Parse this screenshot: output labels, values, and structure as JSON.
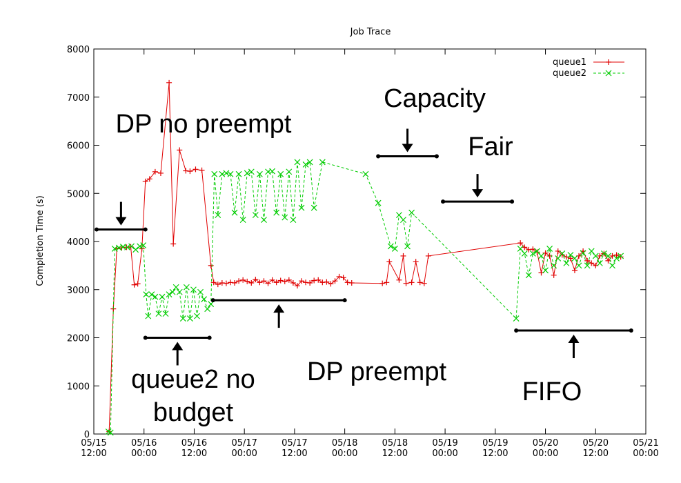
{
  "chart_data": {
    "type": "line",
    "title": "Job Trace",
    "xlabel": "",
    "ylabel": "Completion Time (s)",
    "ylim": [
      0,
      8000
    ],
    "yticks": [
      0,
      1000,
      2000,
      3000,
      4000,
      5000,
      6000,
      7000,
      8000
    ],
    "xlim": [
      "05/15 12:00",
      "05/21 00:00"
    ],
    "xticks": [
      {
        "top": "05/15",
        "bottom": "12:00"
      },
      {
        "top": "05/16",
        "bottom": "00:00"
      },
      {
        "top": "05/16",
        "bottom": "12:00"
      },
      {
        "top": "05/17",
        "bottom": "00:00"
      },
      {
        "top": "05/17",
        "bottom": "12:00"
      },
      {
        "top": "05/18",
        "bottom": "00:00"
      },
      {
        "top": "05/18",
        "bottom": "12:00"
      },
      {
        "top": "05/19",
        "bottom": "00:00"
      },
      {
        "top": "05/19",
        "bottom": "12:00"
      },
      {
        "top": "05/20",
        "bottom": "00:00"
      },
      {
        "top": "05/20",
        "bottom": "12:00"
      },
      {
        "top": "05/21",
        "bottom": "00:00"
      }
    ],
    "legend_position": "top-right",
    "grid": false,
    "colors": {
      "queue1": "#e00000",
      "queue2": "#00cc00"
    },
    "series": [
      {
        "name": "queue1",
        "marker": "plus",
        "points": [
          [
            "05/15 15:40",
            50
          ],
          [
            "05/15 16:40",
            2600
          ],
          [
            "05/15 17:30",
            3850
          ],
          [
            "05/15 18:40",
            3870
          ],
          [
            "05/15 19:50",
            3880
          ],
          [
            "05/15 20:50",
            3890
          ],
          [
            "05/15 21:40",
            3100
          ],
          [
            "05/15 22:30",
            3120
          ],
          [
            "05/15 23:30",
            3850
          ],
          [
            "05/16 00:20",
            5250
          ],
          [
            "05/16 01:20",
            5300
          ],
          [
            "05/16 02:40",
            5450
          ],
          [
            "05/16 04:00",
            5420
          ],
          [
            "05/16 06:00",
            7300
          ],
          [
            "05/16 07:00",
            3950
          ],
          [
            "05/16 08:30",
            5900
          ],
          [
            "05/16 10:00",
            5470
          ],
          [
            "05/16 11:00",
            5460
          ],
          [
            "05/16 12:20",
            5500
          ],
          [
            "05/16 13:50",
            5480
          ],
          [
            "05/16 16:00",
            3500
          ],
          [
            "05/16 16:40",
            3150
          ],
          [
            "05/16 17:40",
            3110
          ],
          [
            "05/16 18:40",
            3140
          ],
          [
            "05/16 19:40",
            3130
          ],
          [
            "05/16 20:40",
            3150
          ],
          [
            "05/16 21:40",
            3140
          ],
          [
            "05/16 22:40",
            3180
          ],
          [
            "05/16 23:40",
            3200
          ],
          [
            "05/17 00:40",
            3170
          ],
          [
            "05/17 01:40",
            3140
          ],
          [
            "05/17 02:40",
            3210
          ],
          [
            "05/17 03:40",
            3150
          ],
          [
            "05/17 04:40",
            3180
          ],
          [
            "05/17 05:40",
            3130
          ],
          [
            "05/17 06:40",
            3200
          ],
          [
            "05/17 07:40",
            3150
          ],
          [
            "05/17 08:40",
            3190
          ],
          [
            "05/17 09:40",
            3170
          ],
          [
            "05/17 10:40",
            3200
          ],
          [
            "05/17 11:40",
            3140
          ],
          [
            "05/17 12:40",
            3080
          ],
          [
            "05/17 13:40",
            3180
          ],
          [
            "05/17 14:40",
            3150
          ],
          [
            "05/17 15:40",
            3140
          ],
          [
            "05/17 16:40",
            3190
          ],
          [
            "05/17 17:40",
            3200
          ],
          [
            "05/17 18:40",
            3150
          ],
          [
            "05/17 19:40",
            3160
          ],
          [
            "05/17 20:40",
            3120
          ],
          [
            "05/17 21:40",
            3180
          ],
          [
            "05/17 22:40",
            3270
          ],
          [
            "05/17 23:40",
            3250
          ],
          [
            "05/18 00:40",
            3150
          ],
          [
            "05/18 01:40",
            3140
          ],
          [
            "05/18 09:00",
            3130
          ],
          [
            "05/18 10:00",
            3150
          ],
          [
            "05/18 10:40",
            3580
          ],
          [
            "05/18 13:00",
            3200
          ],
          [
            "05/18 14:00",
            3700
          ],
          [
            "05/18 14:40",
            3130
          ],
          [
            "05/18 16:00",
            3150
          ],
          [
            "05/18 17:00",
            3580
          ],
          [
            "05/18 18:00",
            3150
          ],
          [
            "05/18 19:00",
            3130
          ],
          [
            "05/18 20:00",
            3700
          ],
          [
            "05/19 18:00",
            3970
          ],
          [
            "05/19 19:00",
            3880
          ],
          [
            "05/19 20:00",
            3830
          ],
          [
            "05/19 21:00",
            3840
          ],
          [
            "05/19 22:00",
            3780
          ],
          [
            "05/19 23:00",
            3350
          ],
          [
            "05/20 00:00",
            3760
          ],
          [
            "05/20 01:00",
            3700
          ],
          [
            "05/20 02:00",
            3300
          ],
          [
            "05/20 03:00",
            3800
          ],
          [
            "05/20 04:00",
            3720
          ],
          [
            "05/20 05:00",
            3680
          ],
          [
            "05/20 06:00",
            3650
          ],
          [
            "05/20 07:00",
            3400
          ],
          [
            "05/20 08:00",
            3700
          ],
          [
            "05/20 09:00",
            3800
          ],
          [
            "05/20 10:00",
            3600
          ],
          [
            "05/20 11:00",
            3550
          ],
          [
            "05/20 12:00",
            3500
          ],
          [
            "05/20 13:00",
            3700
          ],
          [
            "05/20 14:00",
            3750
          ],
          [
            "05/20 15:00",
            3600
          ],
          [
            "05/20 16:00",
            3700
          ],
          [
            "05/20 17:00",
            3720
          ],
          [
            "05/20 18:00",
            3680
          ]
        ]
      },
      {
        "name": "queue2",
        "marker": "x",
        "points": [
          [
            "05/15 15:30",
            50
          ],
          [
            "05/15 16:00",
            30
          ],
          [
            "05/15 17:00",
            3850
          ],
          [
            "05/15 18:00",
            3870
          ],
          [
            "05/15 19:00",
            3890
          ],
          [
            "05/15 20:00",
            3880
          ],
          [
            "05/15 21:00",
            3900
          ],
          [
            "05/15 22:00",
            3830
          ],
          [
            "05/15 23:00",
            3900
          ],
          [
            "05/15 23:50",
            3920
          ],
          [
            "05/16 00:30",
            2900
          ],
          [
            "05/16 01:00",
            2450
          ],
          [
            "05/16 01:50",
            2900
          ],
          [
            "05/16 02:40",
            2850
          ],
          [
            "05/16 03:30",
            2500
          ],
          [
            "05/16 04:20",
            2850
          ],
          [
            "05/16 05:10",
            2500
          ],
          [
            "05/16 06:00",
            2900
          ],
          [
            "05/16 06:50",
            2950
          ],
          [
            "05/16 07:40",
            3050
          ],
          [
            "05/16 08:30",
            2950
          ],
          [
            "05/16 09:20",
            2400
          ],
          [
            "05/16 10:10",
            3050
          ],
          [
            "05/16 11:00",
            2400
          ],
          [
            "05/16 11:50",
            3000
          ],
          [
            "05/16 12:40",
            2450
          ],
          [
            "05/16 13:30",
            2950
          ],
          [
            "05/16 14:20",
            2800
          ],
          [
            "05/16 15:10",
            2600
          ],
          [
            "05/16 16:00",
            2700
          ],
          [
            "05/16 16:50",
            5400
          ],
          [
            "05/16 17:40",
            4550
          ],
          [
            "05/16 18:40",
            5400
          ],
          [
            "05/16 19:40",
            5420
          ],
          [
            "05/16 20:40",
            5400
          ],
          [
            "05/16 21:40",
            4600
          ],
          [
            "05/16 22:40",
            5400
          ],
          [
            "05/16 23:40",
            4450
          ],
          [
            "05/17 00:40",
            5420
          ],
          [
            "05/17 01:40",
            5450
          ],
          [
            "05/17 02:40",
            4550
          ],
          [
            "05/17 03:40",
            5400
          ],
          [
            "05/17 04:40",
            4450
          ],
          [
            "05/17 05:40",
            5450
          ],
          [
            "05/17 06:40",
            5460
          ],
          [
            "05/17 07:40",
            4600
          ],
          [
            "05/17 08:40",
            5400
          ],
          [
            "05/17 09:40",
            4500
          ],
          [
            "05/17 10:40",
            5450
          ],
          [
            "05/17 11:40",
            4450
          ],
          [
            "05/17 12:40",
            5650
          ],
          [
            "05/17 13:40",
            4700
          ],
          [
            "05/17 14:40",
            5600
          ],
          [
            "05/17 15:40",
            5650
          ],
          [
            "05/17 16:40",
            4700
          ],
          [
            "05/17 18:40",
            5650
          ],
          [
            "05/18 05:00",
            5400
          ],
          [
            "05/18 08:00",
            4800
          ],
          [
            "05/18 11:00",
            3900
          ],
          [
            "05/18 12:00",
            3850
          ],
          [
            "05/18 13:00",
            4550
          ],
          [
            "05/18 14:00",
            4450
          ],
          [
            "05/18 15:00",
            3900
          ],
          [
            "05/18 16:00",
            4600
          ],
          [
            "05/19 17:00",
            2400
          ],
          [
            "05/19 18:00",
            3850
          ],
          [
            "05/19 19:00",
            3750
          ],
          [
            "05/19 20:00",
            3300
          ],
          [
            "05/19 21:00",
            3750
          ],
          [
            "05/19 22:00",
            3800
          ],
          [
            "05/19 23:00",
            3700
          ],
          [
            "05/20 00:00",
            3400
          ],
          [
            "05/20 01:00",
            3850
          ],
          [
            "05/20 02:00",
            3500
          ],
          [
            "05/20 03:00",
            3650
          ],
          [
            "05/20 04:00",
            3750
          ],
          [
            "05/20 05:00",
            3550
          ],
          [
            "05/20 06:00",
            3720
          ],
          [
            "05/20 07:00",
            3650
          ],
          [
            "05/20 08:00",
            3500
          ],
          [
            "05/20 09:00",
            3760
          ],
          [
            "05/20 10:00",
            3500
          ],
          [
            "05/20 11:00",
            3800
          ],
          [
            "05/20 12:00",
            3700
          ],
          [
            "05/20 13:00",
            3550
          ],
          [
            "05/20 14:00",
            3750
          ],
          [
            "05/20 15:00",
            3700
          ],
          [
            "05/20 16:00",
            3500
          ],
          [
            "05/20 17:00",
            3650
          ],
          [
            "05/20 18:00",
            3700
          ]
        ]
      }
    ],
    "annotations": [
      {
        "text": "DP no preempt",
        "bar": [
          "05/15 12:40",
          "05/16 00:20"
        ],
        "bar_y": 4250,
        "arrow": "down"
      },
      {
        "text": "queue2 no",
        "text2": "budget",
        "bar": [
          "05/16 00:20",
          "05/16 15:40"
        ],
        "bar_y": 2000,
        "arrow": "up"
      },
      {
        "text": "DP preempt",
        "bar": [
          "05/16 16:30",
          "05/18 00:00"
        ],
        "bar_y": 2780,
        "arrow": "up"
      },
      {
        "text": "Capacity",
        "bar": [
          "05/18 08:00",
          "05/18 22:00"
        ],
        "bar_y": 5770,
        "arrow": "down"
      },
      {
        "text": "Fair",
        "bar": [
          "05/18 23:30",
          "05/19 16:00"
        ],
        "bar_y": 4830,
        "arrow": "down"
      },
      {
        "text": "FIFO",
        "bar": [
          "05/19 17:00",
          "05/20 20:30"
        ],
        "bar_y": 2150,
        "arrow": "up"
      }
    ]
  }
}
